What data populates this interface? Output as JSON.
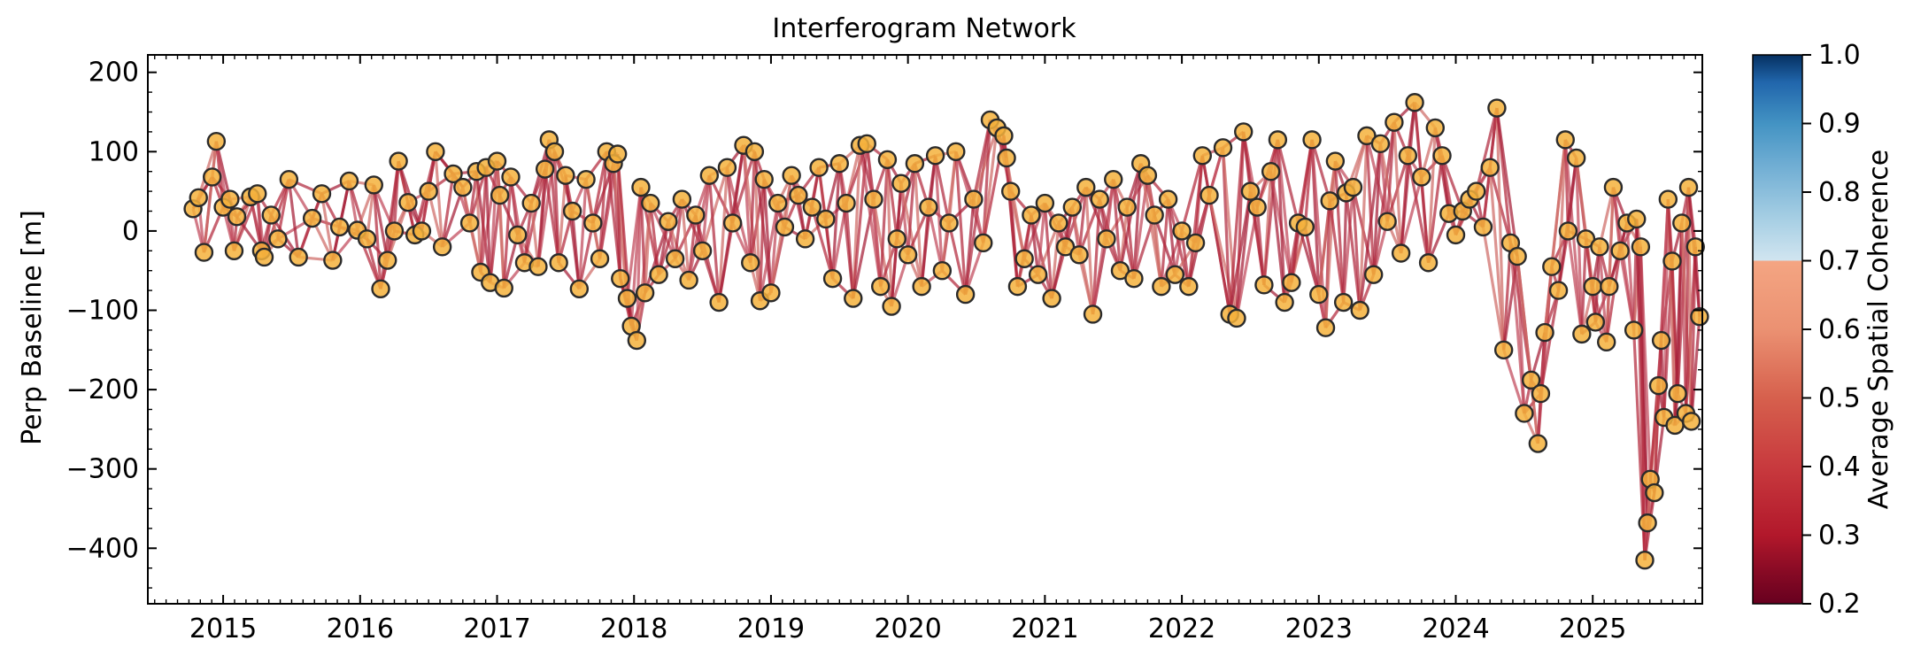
{
  "chart_data": {
    "type": "scatter",
    "title": "Interferogram Network",
    "xlabel": "",
    "ylabel": "Perp Baseline [m]",
    "xlim": [
      2014.45,
      2025.8
    ],
    "ylim": [
      -470,
      222
    ],
    "xticks": [
      2015,
      2016,
      2017,
      2018,
      2019,
      2020,
      2021,
      2022,
      2023,
      2024,
      2025
    ],
    "yticks": [
      200,
      100,
      0,
      -100,
      -200,
      -300,
      -400
    ],
    "ytick_labels": [
      "200",
      "100",
      "0",
      "−100",
      "−200",
      "−300",
      "−400"
    ],
    "colorbar": {
      "label": "Average Spatial Coherence",
      "range": [
        0.2,
        1.0
      ],
      "ticks": [
        "0.2",
        "0.3",
        "0.4",
        "0.5",
        "0.6",
        "0.7",
        "0.8",
        "0.9",
        "1.0"
      ]
    },
    "colors": {
      "point_fill": "#f5b23c",
      "point_edge": "#2b2b2b",
      "edge_line": "#b3283c"
    },
    "acquisitions": [
      [
        2014.78,
        28
      ],
      [
        2014.82,
        42
      ],
      [
        2014.86,
        -27
      ],
      [
        2014.92,
        68
      ],
      [
        2014.95,
        113
      ],
      [
        2015.0,
        30
      ],
      [
        2015.05,
        40
      ],
      [
        2015.08,
        -25
      ],
      [
        2015.1,
        18
      ],
      [
        2015.2,
        43
      ],
      [
        2015.25,
        47
      ],
      [
        2015.28,
        -25
      ],
      [
        2015.3,
        -33
      ],
      [
        2015.35,
        20
      ],
      [
        2015.4,
        -10
      ],
      [
        2015.48,
        65
      ],
      [
        2015.55,
        -33
      ],
      [
        2015.65,
        16
      ],
      [
        2015.72,
        47
      ],
      [
        2015.8,
        -37
      ],
      [
        2015.85,
        5
      ],
      [
        2015.92,
        63
      ],
      [
        2015.98,
        1
      ],
      [
        2016.05,
        -10
      ],
      [
        2016.1,
        58
      ],
      [
        2016.15,
        -73
      ],
      [
        2016.2,
        -37
      ],
      [
        2016.25,
        0
      ],
      [
        2016.28,
        88
      ],
      [
        2016.35,
        36
      ],
      [
        2016.4,
        -5
      ],
      [
        2016.45,
        0
      ],
      [
        2016.5,
        50
      ],
      [
        2016.55,
        100
      ],
      [
        2016.6,
        -20
      ],
      [
        2016.68,
        72
      ],
      [
        2016.75,
        55
      ],
      [
        2016.8,
        10
      ],
      [
        2016.85,
        75
      ],
      [
        2016.88,
        -52
      ],
      [
        2016.92,
        80
      ],
      [
        2016.95,
        -65
      ],
      [
        2017.0,
        88
      ],
      [
        2017.02,
        45
      ],
      [
        2017.05,
        -72
      ],
      [
        2017.1,
        68
      ],
      [
        2017.15,
        -5
      ],
      [
        2017.2,
        -40
      ],
      [
        2017.25,
        35
      ],
      [
        2017.3,
        -45
      ],
      [
        2017.35,
        78
      ],
      [
        2017.38,
        115
      ],
      [
        2017.42,
        100
      ],
      [
        2017.45,
        -40
      ],
      [
        2017.5,
        70
      ],
      [
        2017.55,
        25
      ],
      [
        2017.6,
        -73
      ],
      [
        2017.65,
        65
      ],
      [
        2017.7,
        10
      ],
      [
        2017.75,
        -35
      ],
      [
        2017.8,
        100
      ],
      [
        2017.85,
        85
      ],
      [
        2017.88,
        97
      ],
      [
        2017.9,
        -60
      ],
      [
        2017.95,
        -85
      ],
      [
        2017.98,
        -120
      ],
      [
        2018.02,
        -138
      ],
      [
        2018.05,
        55
      ],
      [
        2018.08,
        -78
      ],
      [
        2018.12,
        35
      ],
      [
        2018.18,
        -55
      ],
      [
        2018.25,
        12
      ],
      [
        2018.3,
        -35
      ],
      [
        2018.35,
        40
      ],
      [
        2018.4,
        -62
      ],
      [
        2018.45,
        20
      ],
      [
        2018.5,
        -25
      ],
      [
        2018.55,
        70
      ],
      [
        2018.62,
        -90
      ],
      [
        2018.68,
        80
      ],
      [
        2018.72,
        10
      ],
      [
        2018.8,
        108
      ],
      [
        2018.85,
        -40
      ],
      [
        2018.88,
        100
      ],
      [
        2018.92,
        -88
      ],
      [
        2018.95,
        65
      ],
      [
        2019.0,
        -78
      ],
      [
        2019.05,
        35
      ],
      [
        2019.1,
        5
      ],
      [
        2019.15,
        70
      ],
      [
        2019.2,
        45
      ],
      [
        2019.25,
        -10
      ],
      [
        2019.3,
        30
      ],
      [
        2019.35,
        80
      ],
      [
        2019.4,
        15
      ],
      [
        2019.45,
        -60
      ],
      [
        2019.5,
        85
      ],
      [
        2019.55,
        35
      ],
      [
        2019.6,
        -85
      ],
      [
        2019.65,
        108
      ],
      [
        2019.7,
        110
      ],
      [
        2019.75,
        40
      ],
      [
        2019.8,
        -70
      ],
      [
        2019.85,
        90
      ],
      [
        2019.88,
        -95
      ],
      [
        2019.92,
        -10
      ],
      [
        2019.95,
        60
      ],
      [
        2020.0,
        -30
      ],
      [
        2020.05,
        85
      ],
      [
        2020.1,
        -70
      ],
      [
        2020.15,
        30
      ],
      [
        2020.2,
        95
      ],
      [
        2020.25,
        -50
      ],
      [
        2020.3,
        10
      ],
      [
        2020.35,
        100
      ],
      [
        2020.42,
        -80
      ],
      [
        2020.48,
        40
      ],
      [
        2020.55,
        -15
      ],
      [
        2020.6,
        140
      ],
      [
        2020.65,
        130
      ],
      [
        2020.7,
        120
      ],
      [
        2020.72,
        92
      ],
      [
        2020.75,
        50
      ],
      [
        2020.8,
        -70
      ],
      [
        2020.85,
        -35
      ],
      [
        2020.9,
        20
      ],
      [
        2020.95,
        -55
      ],
      [
        2021.0,
        35
      ],
      [
        2021.05,
        -85
      ],
      [
        2021.1,
        10
      ],
      [
        2021.15,
        -20
      ],
      [
        2021.2,
        30
      ],
      [
        2021.25,
        -30
      ],
      [
        2021.3,
        55
      ],
      [
        2021.35,
        -105
      ],
      [
        2021.4,
        40
      ],
      [
        2021.45,
        -10
      ],
      [
        2021.5,
        65
      ],
      [
        2021.55,
        -50
      ],
      [
        2021.6,
        30
      ],
      [
        2021.65,
        -60
      ],
      [
        2021.7,
        85
      ],
      [
        2021.75,
        70
      ],
      [
        2021.8,
        20
      ],
      [
        2021.85,
        -70
      ],
      [
        2021.9,
        40
      ],
      [
        2021.95,
        -55
      ],
      [
        2022.0,
        0
      ],
      [
        2022.05,
        -70
      ],
      [
        2022.1,
        -15
      ],
      [
        2022.15,
        95
      ],
      [
        2022.2,
        45
      ],
      [
        2022.3,
        105
      ],
      [
        2022.35,
        -105
      ],
      [
        2022.4,
        -110
      ],
      [
        2022.45,
        125
      ],
      [
        2022.5,
        50
      ],
      [
        2022.55,
        30
      ],
      [
        2022.6,
        -68
      ],
      [
        2022.65,
        75
      ],
      [
        2022.7,
        115
      ],
      [
        2022.75,
        -90
      ],
      [
        2022.8,
        -65
      ],
      [
        2022.85,
        10
      ],
      [
        2022.9,
        5
      ],
      [
        2022.95,
        115
      ],
      [
        2023.0,
        -80
      ],
      [
        2023.05,
        -122
      ],
      [
        2023.08,
        38
      ],
      [
        2023.12,
        88
      ],
      [
        2023.18,
        -90
      ],
      [
        2023.2,
        48
      ],
      [
        2023.25,
        55
      ],
      [
        2023.3,
        -100
      ],
      [
        2023.35,
        120
      ],
      [
        2023.4,
        -55
      ],
      [
        2023.45,
        110
      ],
      [
        2023.5,
        12
      ],
      [
        2023.55,
        137
      ],
      [
        2023.6,
        -28
      ],
      [
        2023.65,
        95
      ],
      [
        2023.7,
        162
      ],
      [
        2023.75,
        68
      ],
      [
        2023.8,
        -40
      ],
      [
        2023.85,
        130
      ],
      [
        2023.9,
        95
      ],
      [
        2023.95,
        22
      ],
      [
        2024.0,
        -5
      ],
      [
        2024.05,
        25
      ],
      [
        2024.1,
        40
      ],
      [
        2024.15,
        50
      ],
      [
        2024.2,
        5
      ],
      [
        2024.25,
        80
      ],
      [
        2024.3,
        155
      ],
      [
        2024.35,
        -150
      ],
      [
        2024.4,
        -15
      ],
      [
        2024.45,
        -32
      ],
      [
        2024.5,
        -230
      ],
      [
        2024.55,
        -188
      ],
      [
        2024.6,
        -268
      ],
      [
        2024.62,
        -205
      ],
      [
        2024.65,
        -128
      ],
      [
        2024.7,
        -45
      ],
      [
        2024.75,
        -75
      ],
      [
        2024.8,
        115
      ],
      [
        2024.82,
        0
      ],
      [
        2024.88,
        92
      ],
      [
        2024.92,
        -130
      ],
      [
        2024.95,
        -10
      ],
      [
        2025.0,
        -70
      ],
      [
        2025.02,
        -115
      ],
      [
        2025.05,
        -20
      ],
      [
        2025.1,
        -140
      ],
      [
        2025.12,
        -70
      ],
      [
        2025.15,
        55
      ],
      [
        2025.2,
        -25
      ],
      [
        2025.25,
        10
      ],
      [
        2025.3,
        -125
      ],
      [
        2025.32,
        15
      ],
      [
        2025.35,
        -20
      ],
      [
        2025.38,
        -415
      ],
      [
        2025.4,
        -368
      ],
      [
        2025.42,
        -313
      ],
      [
        2025.45,
        -330
      ],
      [
        2025.48,
        -195
      ],
      [
        2025.5,
        -138
      ],
      [
        2025.52,
        -235
      ],
      [
        2025.55,
        40
      ],
      [
        2025.58,
        -38
      ],
      [
        2025.6,
        -245
      ],
      [
        2025.62,
        -205
      ],
      [
        2025.65,
        10
      ],
      [
        2025.68,
        -230
      ],
      [
        2025.7,
        55
      ],
      [
        2025.72,
        -240
      ],
      [
        2025.75,
        -20
      ],
      [
        2025.78,
        -108
      ]
    ]
  }
}
